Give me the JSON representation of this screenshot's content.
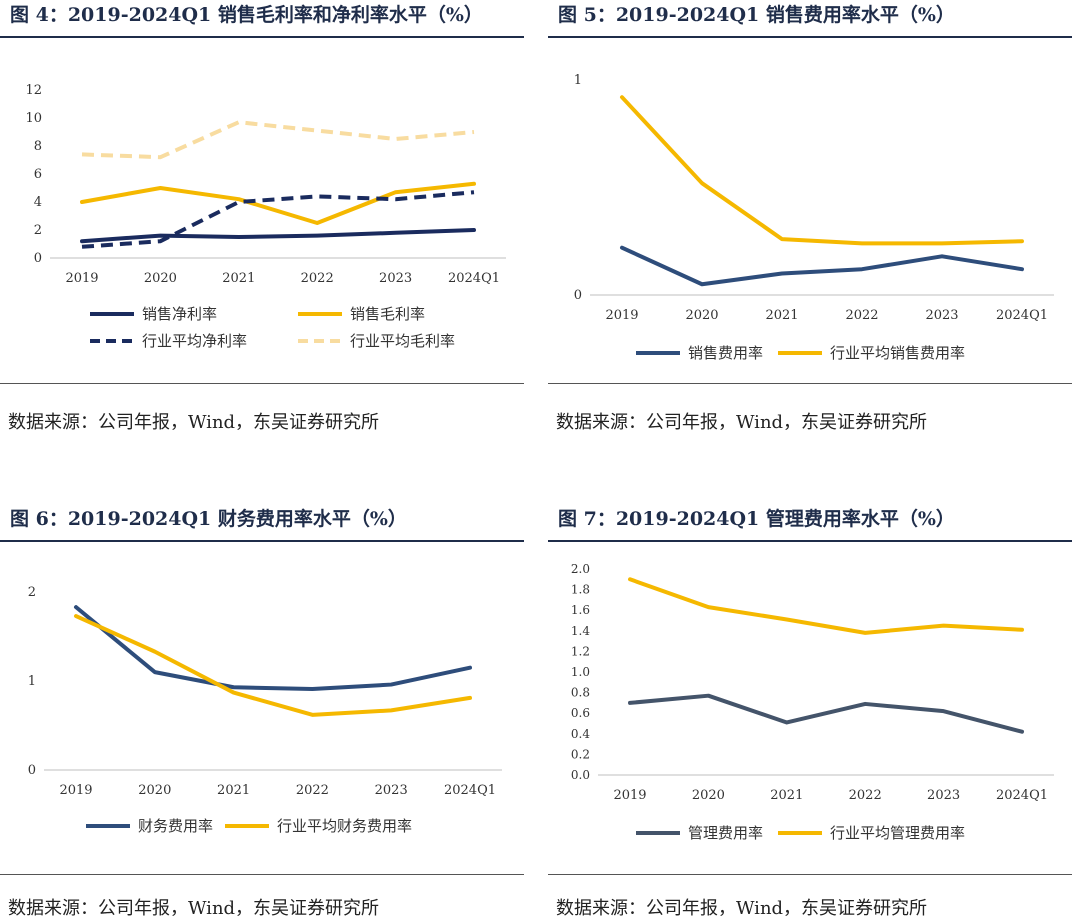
{
  "source_text": "数据来源：公司年报，Wind，东吴证券研究所",
  "colors": {
    "navy": "#1a2b5e",
    "steel": "#2e4d7b",
    "gold": "#f5b800",
    "light_gold": "#f8dca0",
    "slate": "#44546a",
    "axis": "#bfbfbf"
  },
  "chart_data": [
    {
      "id": "fig4",
      "title": "图 4：2019-2024Q1  销售毛利率和净利率水平（%）",
      "type": "line",
      "categories": [
        "2019",
        "2020",
        "2021",
        "2022",
        "2023",
        "2024Q1"
      ],
      "ylim": [
        0,
        12
      ],
      "yticks": [
        "0",
        "2",
        "4",
        "6",
        "8",
        "10",
        "12"
      ],
      "legend_position": "bottom",
      "series": [
        {
          "name": "销售净利率",
          "values": [
            1.2,
            1.6,
            1.5,
            1.6,
            1.8,
            2.0
          ],
          "color": "#1a2b5e",
          "dash": false
        },
        {
          "name": "销售毛利率",
          "values": [
            4.0,
            5.0,
            4.2,
            2.5,
            4.7,
            5.3
          ],
          "color": "#f5b800",
          "dash": false
        },
        {
          "name": "行业平均净利率",
          "values": [
            0.8,
            1.2,
            4.0,
            4.4,
            4.2,
            4.7
          ],
          "color": "#1a2b5e",
          "dash": true
        },
        {
          "name": "行业平均毛利率",
          "values": [
            7.4,
            7.2,
            9.7,
            9.1,
            8.5,
            9.0
          ],
          "color": "#f8dca0",
          "dash": true
        }
      ]
    },
    {
      "id": "fig5",
      "title": "图 5：2019-2024Q1  销售费用率水平（%）",
      "type": "line",
      "categories": [
        "2019",
        "2020",
        "2021",
        "2022",
        "2023",
        "2024Q1"
      ],
      "ylim": [
        0,
        1
      ],
      "yticks": [
        "0",
        "1"
      ],
      "legend_position": "bottom",
      "series": [
        {
          "name": "销售费用率",
          "values": [
            0.22,
            0.05,
            0.1,
            0.12,
            0.18,
            0.12
          ],
          "color": "#2e4d7b",
          "dash": false
        },
        {
          "name": "行业平均销售费用率",
          "values": [
            0.92,
            0.52,
            0.26,
            0.24,
            0.24,
            0.25
          ],
          "color": "#f5b800",
          "dash": false
        }
      ]
    },
    {
      "id": "fig6",
      "title": "图 6：2019-2024Q1 财务费用率水平（%）",
      "type": "line",
      "categories": [
        "2019",
        "2020",
        "2021",
        "2022",
        "2023",
        "2024Q1"
      ],
      "ylim": [
        0,
        2
      ],
      "yticks": [
        "0",
        "1",
        "2"
      ],
      "legend_position": "bottom",
      "series": [
        {
          "name": "财务费用率",
          "values": [
            1.83,
            1.1,
            0.93,
            0.91,
            0.96,
            1.15
          ],
          "color": "#2e4d7b",
          "dash": false
        },
        {
          "name": "行业平均财务费用率",
          "values": [
            1.73,
            1.33,
            0.87,
            0.62,
            0.67,
            0.81
          ],
          "color": "#f5b800",
          "dash": false
        }
      ]
    },
    {
      "id": "fig7",
      "title": "图 7：2019-2024Q1 管理费用率水平（%）",
      "type": "line",
      "categories": [
        "2019",
        "2020",
        "2021",
        "2022",
        "2023",
        "2024Q1"
      ],
      "ylim": [
        0,
        2
      ],
      "yticks": [
        "0.0",
        "0.2",
        "0.4",
        "0.6",
        "0.8",
        "1.0",
        "1.2",
        "1.4",
        "1.6",
        "1.8",
        "2.0"
      ],
      "legend_position": "bottom",
      "series": [
        {
          "name": "管理费用率",
          "values": [
            0.7,
            0.77,
            0.51,
            0.69,
            0.62,
            0.42
          ],
          "color": "#44546a",
          "dash": false
        },
        {
          "name": "行业平均管理费用率",
          "values": [
            1.9,
            1.63,
            1.51,
            1.38,
            1.45,
            1.41
          ],
          "color": "#f5b800",
          "dash": false
        }
      ]
    }
  ]
}
